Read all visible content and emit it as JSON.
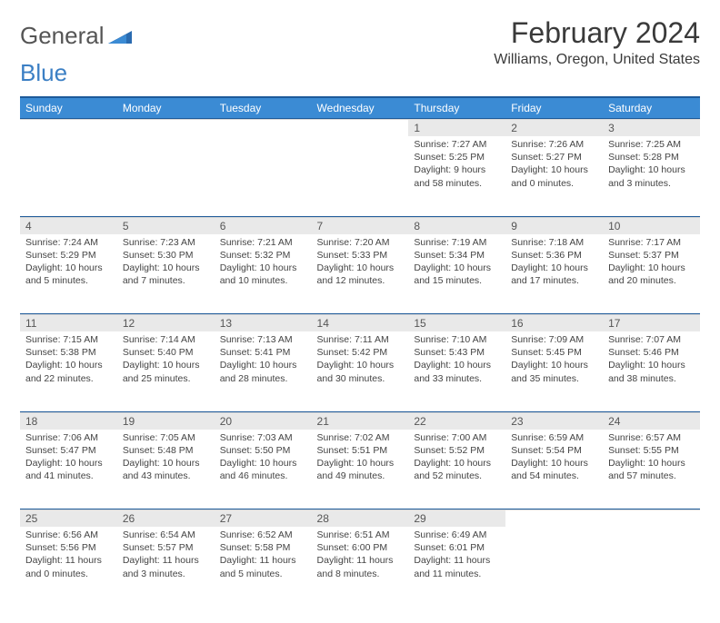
{
  "logo": {
    "word1": "General",
    "word2": "Blue"
  },
  "title": "February 2024",
  "location": "Williams, Oregon, United States",
  "colors": {
    "header_bg": "#3b8bd4",
    "header_border": "#1d5a99",
    "daynum_bg": "#e9e9e9",
    "text": "#333333",
    "logo_blue": "#3b7fc4"
  },
  "day_headers": [
    "Sunday",
    "Monday",
    "Tuesday",
    "Wednesday",
    "Thursday",
    "Friday",
    "Saturday"
  ],
  "weeks": [
    [
      null,
      null,
      null,
      null,
      {
        "n": "1",
        "sunrise": "Sunrise: 7:27 AM",
        "sunset": "Sunset: 5:25 PM",
        "day1": "Daylight: 9 hours",
        "day2": "and 58 minutes."
      },
      {
        "n": "2",
        "sunrise": "Sunrise: 7:26 AM",
        "sunset": "Sunset: 5:27 PM",
        "day1": "Daylight: 10 hours",
        "day2": "and 0 minutes."
      },
      {
        "n": "3",
        "sunrise": "Sunrise: 7:25 AM",
        "sunset": "Sunset: 5:28 PM",
        "day1": "Daylight: 10 hours",
        "day2": "and 3 minutes."
      }
    ],
    [
      {
        "n": "4",
        "sunrise": "Sunrise: 7:24 AM",
        "sunset": "Sunset: 5:29 PM",
        "day1": "Daylight: 10 hours",
        "day2": "and 5 minutes."
      },
      {
        "n": "5",
        "sunrise": "Sunrise: 7:23 AM",
        "sunset": "Sunset: 5:30 PM",
        "day1": "Daylight: 10 hours",
        "day2": "and 7 minutes."
      },
      {
        "n": "6",
        "sunrise": "Sunrise: 7:21 AM",
        "sunset": "Sunset: 5:32 PM",
        "day1": "Daylight: 10 hours",
        "day2": "and 10 minutes."
      },
      {
        "n": "7",
        "sunrise": "Sunrise: 7:20 AM",
        "sunset": "Sunset: 5:33 PM",
        "day1": "Daylight: 10 hours",
        "day2": "and 12 minutes."
      },
      {
        "n": "8",
        "sunrise": "Sunrise: 7:19 AM",
        "sunset": "Sunset: 5:34 PM",
        "day1": "Daylight: 10 hours",
        "day2": "and 15 minutes."
      },
      {
        "n": "9",
        "sunrise": "Sunrise: 7:18 AM",
        "sunset": "Sunset: 5:36 PM",
        "day1": "Daylight: 10 hours",
        "day2": "and 17 minutes."
      },
      {
        "n": "10",
        "sunrise": "Sunrise: 7:17 AM",
        "sunset": "Sunset: 5:37 PM",
        "day1": "Daylight: 10 hours",
        "day2": "and 20 minutes."
      }
    ],
    [
      {
        "n": "11",
        "sunrise": "Sunrise: 7:15 AM",
        "sunset": "Sunset: 5:38 PM",
        "day1": "Daylight: 10 hours",
        "day2": "and 22 minutes."
      },
      {
        "n": "12",
        "sunrise": "Sunrise: 7:14 AM",
        "sunset": "Sunset: 5:40 PM",
        "day1": "Daylight: 10 hours",
        "day2": "and 25 minutes."
      },
      {
        "n": "13",
        "sunrise": "Sunrise: 7:13 AM",
        "sunset": "Sunset: 5:41 PM",
        "day1": "Daylight: 10 hours",
        "day2": "and 28 minutes."
      },
      {
        "n": "14",
        "sunrise": "Sunrise: 7:11 AM",
        "sunset": "Sunset: 5:42 PM",
        "day1": "Daylight: 10 hours",
        "day2": "and 30 minutes."
      },
      {
        "n": "15",
        "sunrise": "Sunrise: 7:10 AM",
        "sunset": "Sunset: 5:43 PM",
        "day1": "Daylight: 10 hours",
        "day2": "and 33 minutes."
      },
      {
        "n": "16",
        "sunrise": "Sunrise: 7:09 AM",
        "sunset": "Sunset: 5:45 PM",
        "day1": "Daylight: 10 hours",
        "day2": "and 35 minutes."
      },
      {
        "n": "17",
        "sunrise": "Sunrise: 7:07 AM",
        "sunset": "Sunset: 5:46 PM",
        "day1": "Daylight: 10 hours",
        "day2": "and 38 minutes."
      }
    ],
    [
      {
        "n": "18",
        "sunrise": "Sunrise: 7:06 AM",
        "sunset": "Sunset: 5:47 PM",
        "day1": "Daylight: 10 hours",
        "day2": "and 41 minutes."
      },
      {
        "n": "19",
        "sunrise": "Sunrise: 7:05 AM",
        "sunset": "Sunset: 5:48 PM",
        "day1": "Daylight: 10 hours",
        "day2": "and 43 minutes."
      },
      {
        "n": "20",
        "sunrise": "Sunrise: 7:03 AM",
        "sunset": "Sunset: 5:50 PM",
        "day1": "Daylight: 10 hours",
        "day2": "and 46 minutes."
      },
      {
        "n": "21",
        "sunrise": "Sunrise: 7:02 AM",
        "sunset": "Sunset: 5:51 PM",
        "day1": "Daylight: 10 hours",
        "day2": "and 49 minutes."
      },
      {
        "n": "22",
        "sunrise": "Sunrise: 7:00 AM",
        "sunset": "Sunset: 5:52 PM",
        "day1": "Daylight: 10 hours",
        "day2": "and 52 minutes."
      },
      {
        "n": "23",
        "sunrise": "Sunrise: 6:59 AM",
        "sunset": "Sunset: 5:54 PM",
        "day1": "Daylight: 10 hours",
        "day2": "and 54 minutes."
      },
      {
        "n": "24",
        "sunrise": "Sunrise: 6:57 AM",
        "sunset": "Sunset: 5:55 PM",
        "day1": "Daylight: 10 hours",
        "day2": "and 57 minutes."
      }
    ],
    [
      {
        "n": "25",
        "sunrise": "Sunrise: 6:56 AM",
        "sunset": "Sunset: 5:56 PM",
        "day1": "Daylight: 11 hours",
        "day2": "and 0 minutes."
      },
      {
        "n": "26",
        "sunrise": "Sunrise: 6:54 AM",
        "sunset": "Sunset: 5:57 PM",
        "day1": "Daylight: 11 hours",
        "day2": "and 3 minutes."
      },
      {
        "n": "27",
        "sunrise": "Sunrise: 6:52 AM",
        "sunset": "Sunset: 5:58 PM",
        "day1": "Daylight: 11 hours",
        "day2": "and 5 minutes."
      },
      {
        "n": "28",
        "sunrise": "Sunrise: 6:51 AM",
        "sunset": "Sunset: 6:00 PM",
        "day1": "Daylight: 11 hours",
        "day2": "and 8 minutes."
      },
      {
        "n": "29",
        "sunrise": "Sunrise: 6:49 AM",
        "sunset": "Sunset: 6:01 PM",
        "day1": "Daylight: 11 hours",
        "day2": "and 11 minutes."
      },
      null,
      null
    ]
  ]
}
